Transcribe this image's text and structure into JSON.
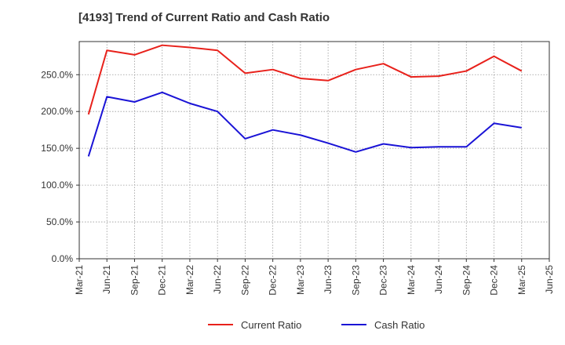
{
  "chart_data": {
    "type": "line",
    "title": "[4193]  Trend of Current Ratio and Cash Ratio",
    "xlabel": "",
    "ylabel": "",
    "x_tick_labels": [
      "Mar-21",
      "Jun-21",
      "Sep-21",
      "Dec-21",
      "Mar-22",
      "Jun-22",
      "Sep-22",
      "Dec-22",
      "Mar-23",
      "Jun-23",
      "Sep-23",
      "Dec-23",
      "Mar-24",
      "Jun-24",
      "Sep-24",
      "Dec-24",
      "Mar-25",
      "Jun-25"
    ],
    "y_tick_labels": [
      "0.0%",
      "50.0%",
      "100.0%",
      "150.0%",
      "200.0%",
      "250.0%"
    ],
    "y_ticks": [
      0,
      50,
      100,
      150,
      200,
      250
    ],
    "ylim": [
      0,
      295
    ],
    "grid": true,
    "legend_position": "bottom-center",
    "x_points": [
      "Apr-21",
      "Jun-21",
      "Sep-21",
      "Dec-21",
      "Mar-22",
      "Jun-22",
      "Sep-22",
      "Dec-22",
      "Mar-23",
      "Jun-23",
      "Sep-23",
      "Dec-23",
      "Mar-24",
      "Jun-24",
      "Sep-24",
      "Dec-24",
      "Mar-25"
    ],
    "series": [
      {
        "name": "Current Ratio",
        "color": "#e8211b",
        "values": [
          196,
          283,
          277,
          290,
          287,
          283,
          252,
          257,
          245,
          242,
          257,
          265,
          247,
          248,
          255,
          275,
          255
        ]
      },
      {
        "name": "Cash Ratio",
        "color": "#1a13d6",
        "values": [
          139,
          220,
          213,
          226,
          211,
          200,
          163,
          175,
          168,
          157,
          145,
          156,
          151,
          152,
          152,
          184,
          178
        ]
      }
    ]
  }
}
